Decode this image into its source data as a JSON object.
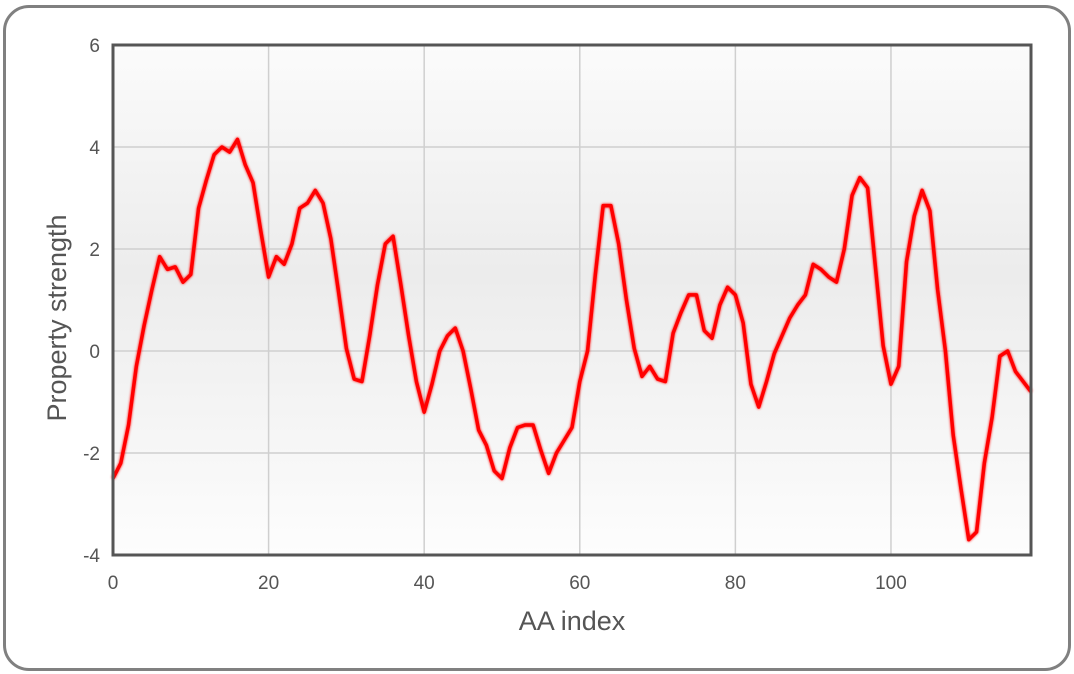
{
  "chart_data": {
    "type": "line",
    "title": "",
    "xlabel": "AA index",
    "ylabel": "Property strength",
    "xlim": [
      0,
      118
    ],
    "ylim": [
      -4,
      6
    ],
    "xticks": [
      0,
      20,
      40,
      60,
      80,
      100
    ],
    "yticks": [
      -4,
      -2,
      0,
      2,
      4,
      6
    ],
    "grid": true,
    "line_color": "#ff0000",
    "series": [
      {
        "x": [
          0,
          1,
          2,
          3,
          4,
          5,
          6,
          7,
          8,
          9,
          10,
          11,
          12,
          13,
          14,
          15,
          16,
          17,
          18,
          19,
          20,
          21,
          22,
          23,
          24,
          25,
          26,
          27,
          28,
          29,
          30,
          31,
          32,
          33,
          34,
          35,
          36,
          37,
          38,
          39,
          40,
          41,
          42,
          43,
          44,
          45,
          46,
          47,
          48,
          49,
          50,
          51,
          52,
          53,
          54,
          55,
          56,
          57,
          58,
          59,
          60,
          61,
          62,
          63,
          64,
          65,
          66,
          67,
          68,
          69,
          70,
          71,
          72,
          73,
          74,
          75,
          76,
          77,
          78,
          79,
          80,
          81,
          82,
          83,
          84,
          85,
          86,
          87,
          88,
          89,
          90,
          91,
          92,
          93,
          94,
          95,
          96,
          97,
          98,
          99,
          100,
          101,
          102,
          103,
          104,
          105,
          106,
          107,
          108,
          109,
          110,
          111,
          112,
          113,
          114,
          115,
          116,
          117,
          118
        ],
        "y": [
          -2.5,
          -2.2,
          -1.45,
          -0.3,
          0.5,
          1.2,
          1.85,
          1.6,
          1.65,
          1.35,
          1.5,
          2.8,
          3.35,
          3.85,
          4.0,
          3.9,
          4.15,
          3.65,
          3.3,
          2.35,
          1.45,
          1.85,
          1.7,
          2.1,
          2.8,
          2.9,
          3.15,
          2.9,
          2.2,
          1.15,
          0.05,
          -0.55,
          -0.6,
          0.3,
          1.3,
          2.1,
          2.25,
          1.3,
          0.3,
          -0.6,
          -1.2,
          -0.65,
          0,
          0.3,
          0.45,
          0,
          -0.75,
          -1.55,
          -1.85,
          -2.35,
          -2.5,
          -1.9,
          -1.5,
          -1.45,
          -1.45,
          -1.95,
          -2.4,
          -2.0,
          -1.75,
          -1.5,
          -0.6,
          0,
          1.5,
          2.85,
          2.85,
          2.1,
          1.0,
          0.05,
          -0.5,
          -0.3,
          -0.55,
          -0.6,
          0.35,
          0.75,
          1.1,
          1.1,
          0.4,
          0.25,
          0.9,
          1.25,
          1.1,
          0.55,
          -0.65,
          -1.1,
          -0.6,
          -0.05,
          0.3,
          0.65,
          0.9,
          1.1,
          1.7,
          1.6,
          1.45,
          1.35,
          2.0,
          3.05,
          3.4,
          3.2,
          1.65,
          0.1,
          -0.65,
          -0.3,
          1.75,
          2.65,
          3.15,
          2.75,
          1.2,
          0,
          -1.65,
          -2.7,
          -3.7,
          -3.55,
          -2.2,
          -1.3,
          -0.1,
          0,
          -0.4,
          -0.6,
          -0.8
        ]
      }
    ]
  }
}
